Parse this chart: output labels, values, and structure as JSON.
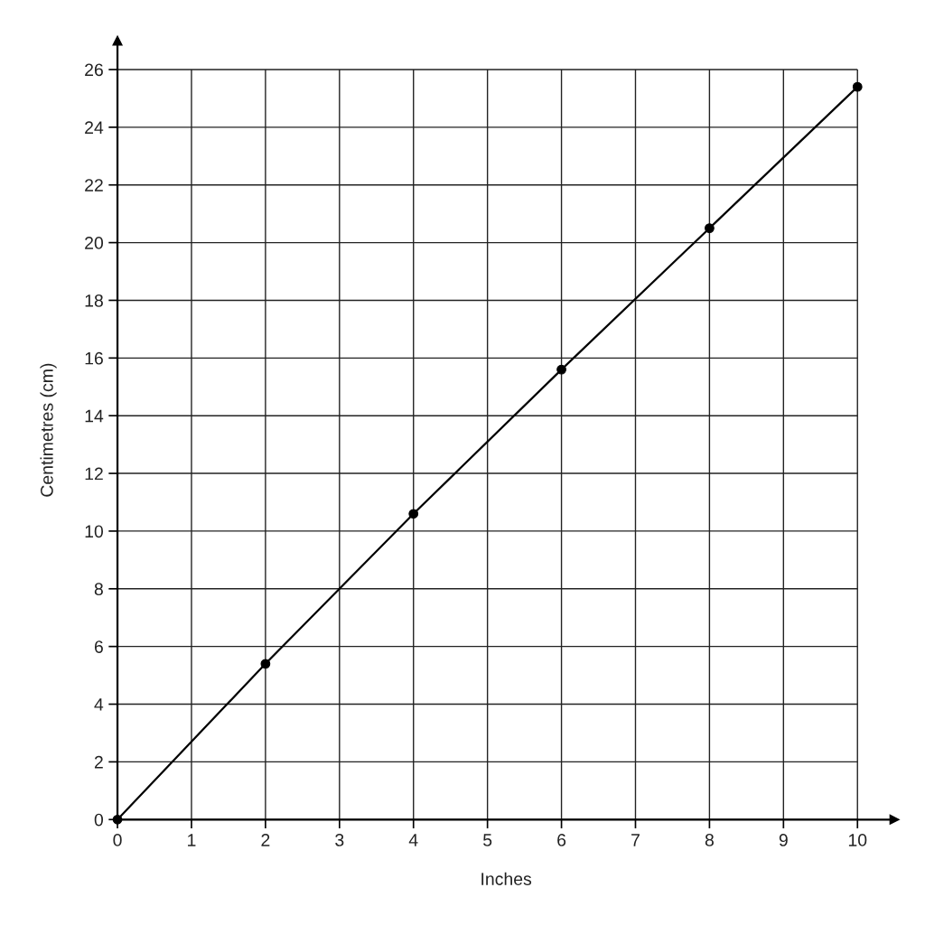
{
  "chart_data": {
    "type": "line",
    "xlabel": "Inches",
    "ylabel": "Centimetres (cm)",
    "x": [
      0,
      2,
      4,
      6,
      8,
      10
    ],
    "series": [
      {
        "color": "#000000",
        "values": [
          0,
          5.4,
          10.6,
          15.6,
          20.5,
          25.4
        ]
      }
    ],
    "xlim": [
      0,
      10.5
    ],
    "ylim": [
      0,
      27
    ],
    "xticks": [
      0,
      1,
      2,
      3,
      4,
      5,
      6,
      7,
      8,
      9,
      10
    ],
    "yticks": [
      0,
      2,
      4,
      6,
      8,
      10,
      12,
      14,
      16,
      18,
      20,
      22,
      24,
      26
    ],
    "grid": true,
    "marker": "circle",
    "line_style": "solid"
  }
}
